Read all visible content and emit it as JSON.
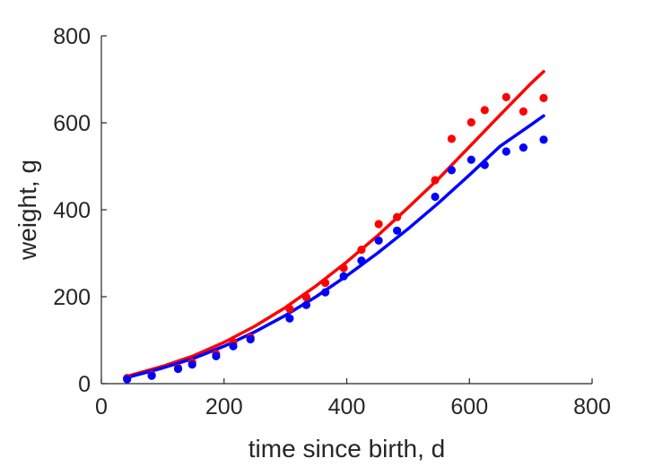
{
  "chart_data": {
    "type": "scatter",
    "title": "",
    "xlabel": "time since birth, d",
    "ylabel": "weight, g",
    "xlim": [
      0,
      800
    ],
    "ylim": [
      0,
      800
    ],
    "xticks": [
      0,
      200,
      400,
      600,
      800
    ],
    "yticks": [
      0,
      200,
      400,
      600,
      800
    ],
    "grid": false,
    "legend": "none",
    "series": [
      {
        "kind": "points",
        "color": "#ff0000",
        "x": [
          42,
          82,
          125,
          148,
          187,
          215,
          243,
          307,
          334,
          365,
          395,
          424,
          452,
          482,
          544,
          571,
          603,
          625,
          660,
          688,
          721
        ],
        "y": [
          13,
          20,
          36,
          49,
          68,
          95,
          106,
          172,
          199,
          232,
          266,
          308,
          367,
          383,
          468,
          563,
          601,
          629,
          659,
          626,
          657
        ]
      },
      {
        "kind": "points",
        "color": "#0000ff",
        "x": [
          42,
          82,
          125,
          148,
          187,
          215,
          243,
          307,
          334,
          365,
          395,
          424,
          452,
          482,
          544,
          571,
          603,
          625,
          660,
          688,
          721
        ],
        "y": [
          10,
          18,
          34,
          44,
          63,
          86,
          102,
          150,
          181,
          210,
          247,
          283,
          329,
          352,
          430,
          491,
          515,
          503,
          534,
          543,
          561
        ]
      },
      {
        "kind": "line",
        "color": "#ff0000",
        "x": [
          42,
          100,
          150,
          200,
          250,
          300,
          350,
          400,
          450,
          500,
          550,
          600,
          650,
          700,
          721
        ],
        "y": [
          17,
          40,
          64,
          95,
          132,
          175,
          225,
          280,
          340,
          405,
          472,
          545,
          618,
          690,
          718
        ]
      },
      {
        "kind": "line",
        "color": "#0000ff",
        "x": [
          42,
          100,
          150,
          200,
          250,
          300,
          350,
          400,
          450,
          500,
          550,
          600,
          650,
          700,
          721
        ],
        "y": [
          14,
          36,
          58,
          86,
          119,
          157,
          200,
          248,
          300,
          356,
          416,
          480,
          546,
          595,
          616
        ]
      }
    ]
  }
}
